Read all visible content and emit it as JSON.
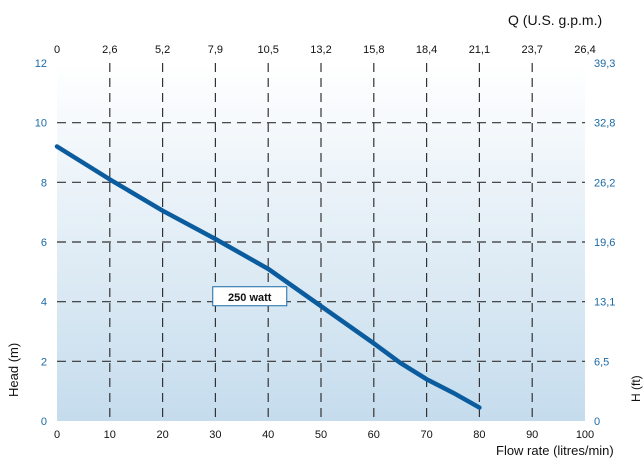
{
  "chart_data": {
    "type": "line",
    "top_axis_label": "Q (U.S. g.p.m.)",
    "xlabel": "Flow rate (litres/min)",
    "ylabel": "Head (m)",
    "right_axis_label": "H (ft)",
    "x_ticks": [
      "0",
      "10",
      "20",
      "30",
      "40",
      "50",
      "60",
      "70",
      "80",
      "90",
      "100"
    ],
    "y_ticks": [
      "0",
      "2",
      "4",
      "6",
      "8",
      "10",
      "12"
    ],
    "top_ticks": [
      "0",
      "2,6",
      "5,2",
      "7,9",
      "10,5",
      "13,2",
      "15,8",
      "18,4",
      "21,1",
      "23,7",
      "26,4"
    ],
    "right_ticks": [
      "0",
      "6,5",
      "13,1",
      "19,6",
      "26,2",
      "32,8",
      "39,3"
    ],
    "xlim": [
      0,
      100
    ],
    "ylim": [
      0,
      12
    ],
    "grid": true,
    "series": [
      {
        "name": "250 watt",
        "x": [
          0,
          10,
          20,
          30,
          40,
          50,
          60,
          65,
          70,
          75,
          80
        ],
        "y": [
          9.2,
          8.1,
          7.05,
          6.1,
          5.1,
          3.85,
          2.6,
          1.95,
          1.4,
          0.95,
          0.45
        ],
        "color": "#0a5c9e"
      }
    ],
    "colors": {
      "blue_text": "#1b6aa5",
      "grid": "#333333",
      "background_top": "#ffffff",
      "background_bottom": "#c5dced"
    }
  }
}
